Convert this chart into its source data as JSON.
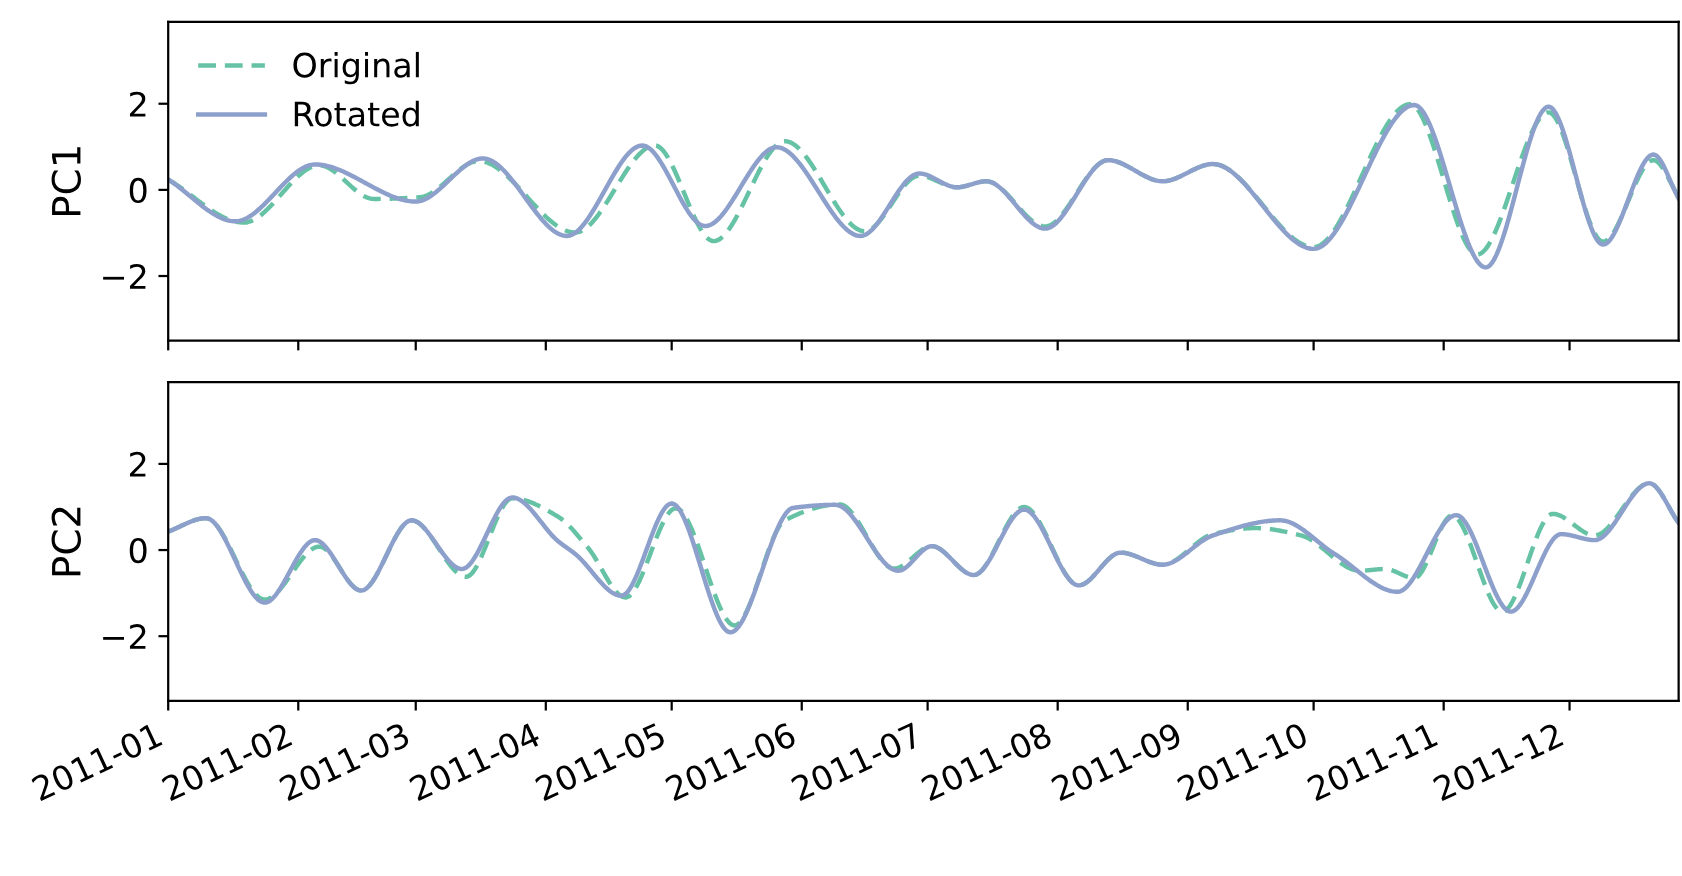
{
  "chart_data": [
    {
      "type": "line",
      "ylabel": "PC1",
      "xlim": [
        "2011-01-01",
        "2011-12-27"
      ],
      "ylim": [
        -3.5,
        3.9
      ],
      "yticks": [
        {
          "value": -2,
          "label": "−2"
        },
        0,
        2
      ],
      "xticks": [
        {
          "value": "2011-01-01",
          "label": null
        },
        {
          "value": "2011-02-01",
          "label": null
        },
        {
          "value": "2011-03-01",
          "label": null
        },
        {
          "value": "2011-04-01",
          "label": null
        },
        {
          "value": "2011-05-01",
          "label": null
        },
        {
          "value": "2011-06-01",
          "label": null
        },
        {
          "value": "2011-07-01",
          "label": null
        },
        {
          "value": "2011-08-01",
          "label": null
        },
        {
          "value": "2011-09-01",
          "label": null
        },
        {
          "value": "2011-10-01",
          "label": null
        },
        {
          "value": "2011-11-01",
          "label": null
        },
        {
          "value": "2011-12-01",
          "label": null
        }
      ],
      "tick_labels": "y",
      "grid": false,
      "legend": "top left",
      "series": [
        {
          "name": "Original",
          "color": "#66c2a5",
          "line_style": "dashed",
          "x": [
            "2011-01-01",
            "2011-01-19",
            "2011-02-06",
            "2011-02-19",
            "2011-03-02",
            "2011-03-16",
            "2011-04-08",
            "2011-04-27",
            "2011-05-11",
            "2011-05-28",
            "2011-06-16",
            "2011-06-29",
            "2011-07-08",
            "2011-07-15",
            "2011-07-29",
            "2011-08-13",
            "2011-08-26",
            "2011-09-07",
            "2011-10-01",
            "2011-10-24",
            "2011-11-09",
            "2011-11-26",
            "2011-12-09",
            "2011-12-21",
            "2011-12-27"
          ],
          "values": [
            0.24,
            -0.76,
            0.57,
            -0.21,
            -0.17,
            0.67,
            -0.99,
            1.03,
            -1.19,
            1.13,
            -0.96,
            0.33,
            0.06,
            0.2,
            -0.85,
            0.69,
            0.2,
            0.6,
            -1.33,
            1.99,
            -1.5,
            1.8,
            -1.2,
            0.69,
            -0.15
          ]
        },
        {
          "name": "Rotated",
          "color": "#8da0cb",
          "line_style": "solid",
          "x": [
            "2011-01-01",
            "2011-01-17",
            "2011-02-05",
            "2011-03-01",
            "2011-03-17",
            "2011-04-06",
            "2011-04-24",
            "2011-05-09",
            "2011-05-26",
            "2011-06-15",
            "2011-06-29",
            "2011-07-08",
            "2011-07-15",
            "2011-07-29",
            "2011-08-13",
            "2011-08-26",
            "2011-09-07",
            "2011-10-01",
            "2011-10-25",
            "2011-11-11",
            "2011-11-26",
            "2011-12-09",
            "2011-12-21",
            "2011-12-27"
          ],
          "values": [
            0.24,
            -0.73,
            0.59,
            -0.27,
            0.73,
            -1.07,
            1.03,
            -0.84,
            0.99,
            -1.07,
            0.38,
            0.06,
            0.2,
            -0.9,
            0.69,
            0.2,
            0.6,
            -1.37,
            1.97,
            -1.8,
            1.93,
            -1.27,
            0.82,
            -0.2
          ]
        }
      ]
    },
    {
      "type": "line",
      "ylabel": "PC2",
      "xlim": [
        "2011-01-01",
        "2011-12-27"
      ],
      "ylim": [
        -3.5,
        3.9
      ],
      "yticks": [
        {
          "value": -2,
          "label": "−2"
        },
        0,
        2
      ],
      "xticks": [
        {
          "value": "2011-01-01",
          "label": "2011-01"
        },
        {
          "value": "2011-02-01",
          "label": "2011-02"
        },
        {
          "value": "2011-03-01",
          "label": "2011-03"
        },
        {
          "value": "2011-04-01",
          "label": "2011-04"
        },
        {
          "value": "2011-05-01",
          "label": "2011-05"
        },
        {
          "value": "2011-06-01",
          "label": "2011-06"
        },
        {
          "value": "2011-07-01",
          "label": "2011-07"
        },
        {
          "value": "2011-08-01",
          "label": "2011-08"
        },
        {
          "value": "2011-09-01",
          "label": "2011-09"
        },
        {
          "value": "2011-10-01",
          "label": "2011-10"
        },
        {
          "value": "2011-11-01",
          "label": "2011-11"
        },
        {
          "value": "2011-12-01",
          "label": "2011-12"
        }
      ],
      "grid": false,
      "legend": false,
      "series": [
        {
          "color": "#66c2a5",
          "line_style": "dashed",
          "x": [
            "2011-01-01",
            "2011-01-10",
            "2011-01-24",
            "2011-02-06",
            "2011-02-16",
            "2011-02-28",
            "2011-03-13",
            "2011-03-24",
            "2011-04-04",
            "2011-04-11",
            "2011-04-20",
            "2011-05-02",
            "2011-05-16",
            "2011-05-28",
            "2011-06-10",
            "2011-06-23",
            "2011-07-02",
            "2011-07-12",
            "2011-07-24",
            "2011-08-06",
            "2011-08-16",
            "2011-08-26",
            "2011-09-07",
            "2011-09-17",
            "2011-09-28",
            "2011-10-12",
            "2011-10-18",
            "2011-10-25",
            "2011-11-03",
            "2011-11-15",
            "2011-11-27",
            "2011-12-07",
            "2011-12-20",
            "2011-12-27"
          ],
          "values": [
            0.43,
            0.74,
            -1.15,
            0.08,
            -0.94,
            0.69,
            -0.62,
            1.2,
            0.77,
            0.06,
            -1.1,
            0.97,
            -1.75,
            0.69,
            1.06,
            -0.43,
            0.09,
            -0.58,
            1.0,
            -0.82,
            -0.06,
            -0.34,
            0.37,
            0.51,
            0.34,
            -0.48,
            -0.44,
            -0.65,
            0.8,
            -1.43,
            0.84,
            0.34,
            1.55,
            0.63
          ]
        },
        {
          "color": "#8da0cb",
          "line_style": "solid",
          "x": [
            "2011-01-01",
            "2011-01-10",
            "2011-01-24",
            "2011-02-05",
            "2011-02-16",
            "2011-02-28",
            "2011-03-12",
            "2011-03-24",
            "2011-04-04",
            "2011-04-08",
            "2011-04-19",
            "2011-05-01",
            "2011-05-15",
            "2011-05-30",
            "2011-06-09",
            "2011-06-24",
            "2011-07-02",
            "2011-07-12",
            "2011-07-24",
            "2011-08-06",
            "2011-08-16",
            "2011-08-26",
            "2011-09-07",
            "2011-09-23",
            "2011-10-06",
            "2011-10-21",
            "2011-11-04",
            "2011-11-17",
            "2011-11-29",
            "2011-12-07",
            "2011-12-20",
            "2011-12-27"
          ],
          "values": [
            0.43,
            0.74,
            -1.22,
            0.23,
            -0.94,
            0.69,
            -0.44,
            1.22,
            0.2,
            -0.09,
            -1.06,
            1.08,
            -1.91,
            0.98,
            1.05,
            -0.48,
            0.09,
            -0.58,
            0.94,
            -0.82,
            -0.06,
            -0.34,
            0.34,
            0.69,
            -0.09,
            -0.97,
            0.81,
            -1.43,
            0.37,
            0.23,
            1.55,
            0.63
          ]
        }
      ]
    }
  ]
}
